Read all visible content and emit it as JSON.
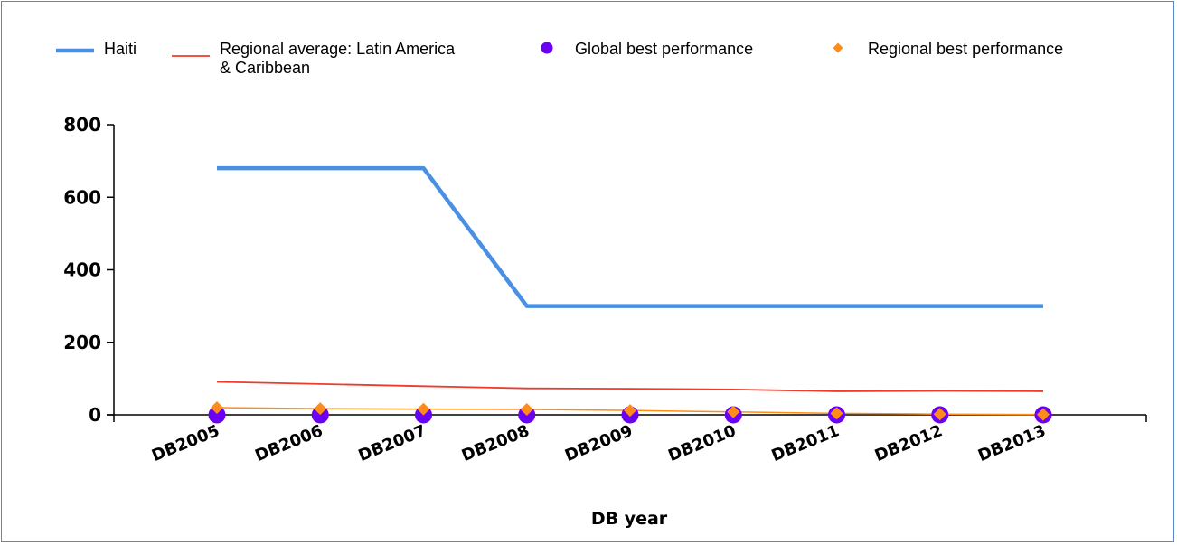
{
  "chart_data": {
    "type": "line",
    "categories": [
      "DB2005",
      "DB2006",
      "DB2007",
      "DB2008",
      "DB2009",
      "DB2010",
      "DB2011",
      "DB2012",
      "DB2013"
    ],
    "xlabel": "DB year",
    "ylabel": "",
    "ylim": [
      0,
      800
    ],
    "yticks": [
      0,
      200,
      400,
      600,
      800
    ],
    "grid": false,
    "legend_position": "top",
    "series": [
      {
        "name": "Haiti",
        "marker": "line",
        "color": "#4a90e2",
        "values": [
          680,
          680,
          680,
          300,
          300,
          300,
          300,
          300,
          300
        ]
      },
      {
        "name": "Regional average: Latin America & Caribbean",
        "marker": "line",
        "color": "#ee3b2b",
        "values": [
          91,
          85,
          79,
          73,
          72,
          70,
          65,
          66,
          65
        ]
      },
      {
        "name": "Global best performance",
        "marker": "circle",
        "color": "#6a00f4",
        "values": [
          0,
          0,
          0,
          0,
          0,
          0,
          0,
          0,
          0
        ]
      },
      {
        "name": "Regional best performance",
        "marker": "diamond",
        "color": "#ff8c1a",
        "values": [
          20,
          17,
          16,
          15,
          12,
          8,
          4,
          2,
          1
        ]
      }
    ]
  }
}
